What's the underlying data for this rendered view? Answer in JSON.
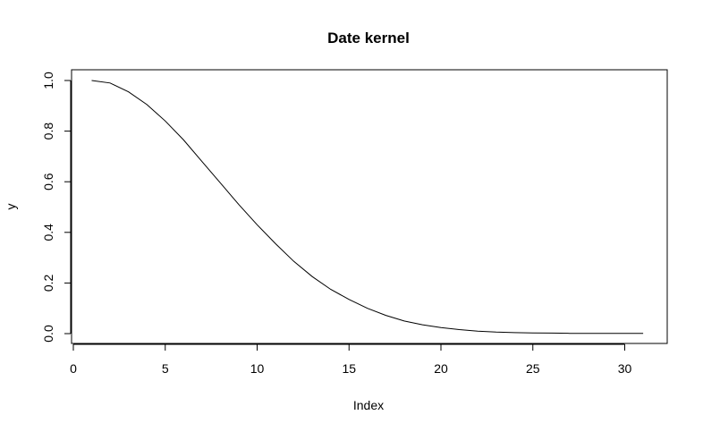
{
  "chart_data": {
    "type": "line",
    "title": "Date kernel",
    "xlabel": "Index",
    "ylabel": "y",
    "xlim": [
      0,
      31
    ],
    "ylim": [
      0,
      1
    ],
    "x_ticks": [
      "0",
      "5",
      "10",
      "15",
      "20",
      "25",
      "30"
    ],
    "y_ticks": [
      "0.0",
      "0.2",
      "0.4",
      "0.6",
      "0.8",
      "1.0"
    ],
    "grid": false,
    "legend": "none",
    "line_color": "#000000",
    "series": [
      {
        "x": [
          1,
          2,
          3,
          4,
          5,
          6,
          7,
          8,
          9,
          10,
          11,
          12,
          13,
          14,
          15,
          16,
          17,
          18,
          19,
          20,
          21,
          22,
          23,
          24,
          25,
          26,
          27,
          28,
          29,
          30,
          31
        ],
        "values": [
          1.0,
          0.99,
          0.955,
          0.905,
          0.84,
          0.765,
          0.68,
          0.595,
          0.51,
          0.43,
          0.355,
          0.285,
          0.225,
          0.175,
          0.135,
          0.1,
          0.072,
          0.05,
          0.035,
          0.024,
          0.016,
          0.01,
          0.006,
          0.004,
          0.003,
          0.002,
          0.001,
          0.001,
          0.001,
          0.001,
          0.001
        ]
      }
    ]
  }
}
